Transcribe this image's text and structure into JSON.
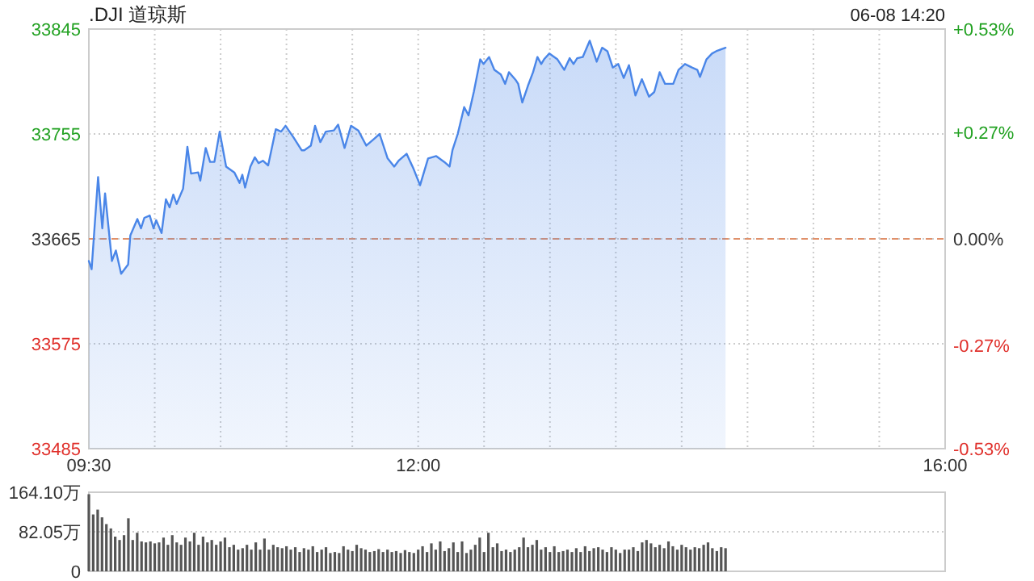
{
  "chart_data": [
    {
      "type": "area",
      "title": ".DJI 道琼斯",
      "annotations": [
        "06-08 14:20"
      ],
      "x": [
        9.5,
        9.521,
        9.57,
        9.602,
        9.623,
        9.675,
        9.705,
        9.745,
        9.798,
        9.815,
        9.868,
        9.896,
        9.921,
        9.962,
        9.991,
        10.011,
        10.052,
        10.085,
        10.113,
        10.141,
        10.166,
        10.215,
        10.248,
        10.276,
        10.33,
        10.346,
        10.387,
        10.42,
        10.453,
        10.493,
        10.542,
        10.604,
        10.644,
        10.665,
        10.686,
        10.726,
        10.76,
        10.788,
        10.821,
        10.861,
        10.919,
        10.959,
        10.993,
        11.054,
        11.115,
        11.135,
        11.185,
        11.217,
        11.257,
        11.299,
        11.36,
        11.392,
        11.441,
        11.49,
        11.545,
        11.606,
        11.667,
        11.707,
        11.768,
        11.818,
        11.851,
        11.912,
        11.965,
        12.014,
        12.075,
        12.137,
        12.198,
        12.238,
        12.26,
        12.3,
        12.349,
        12.382,
        12.422,
        12.471,
        12.496,
        12.538,
        12.578,
        12.627,
        12.66,
        12.689,
        12.742,
        12.759,
        12.79,
        12.832,
        12.872,
        12.905,
        12.934,
        12.955,
        12.995,
        13.057,
        13.109,
        13.15,
        13.179,
        13.207,
        13.249,
        13.302,
        13.355,
        13.396,
        13.436,
        13.477,
        13.519,
        13.56,
        13.6,
        13.649,
        13.698,
        13.752,
        13.792,
        13.833,
        13.874,
        13.936,
        13.976,
        14.025,
        14.078,
        14.119,
        14.139,
        14.188,
        14.23,
        14.262,
        14.333
      ],
      "series": [
        {
          "color": "#4a86e8",
          "values": [
            33646,
            33639,
            33718,
            33674,
            33704,
            33646,
            33655,
            33635,
            33643,
            33668,
            33682,
            33674,
            33683,
            33685,
            33674,
            33681,
            33670,
            33699,
            33692,
            33703,
            33695,
            33708,
            33744,
            33721,
            33722,
            33715,
            33743,
            33731,
            33731,
            33757,
            33727,
            33722,
            33713,
            33720,
            33709,
            33727,
            33735,
            33730,
            33732,
            33728,
            33759,
            33757,
            33762,
            33752,
            33741,
            33741,
            33745,
            33762,
            33748,
            33757,
            33758,
            33763,
            33743,
            33762,
            33758,
            33745,
            33751,
            33755,
            33734,
            33727,
            33732,
            33738,
            33725,
            33711,
            33734,
            33736,
            33731,
            33727,
            33741,
            33755,
            33778,
            33771,
            33791,
            33819,
            33815,
            33821,
            33810,
            33806,
            33798,
            33808,
            33801,
            33798,
            33782,
            33796,
            33808,
            33821,
            33815,
            33819,
            33824,
            33819,
            33810,
            33820,
            33815,
            33820,
            33821,
            33835,
            33817,
            33829,
            33826,
            33812,
            33815,
            33803,
            33814,
            33788,
            33802,
            33787,
            33791,
            33808,
            33798,
            33798,
            33810,
            33815,
            33812,
            33810,
            33804,
            33819,
            33824,
            33826,
            33829
          ]
        }
      ],
      "xlim": [
        9.5,
        16
      ],
      "xticks": [
        {
          "value": 9.5,
          "label": "09:30"
        },
        {
          "value": 10,
          "label": null
        },
        {
          "value": 10.5,
          "label": null
        },
        {
          "value": 11,
          "label": null
        },
        {
          "value": 11.5,
          "label": null
        },
        {
          "value": 12,
          "label": "12:00"
        },
        {
          "value": 12.5,
          "label": null
        },
        {
          "value": 13,
          "label": null
        },
        {
          "value": 13.5,
          "label": null
        },
        {
          "value": 14,
          "label": null
        },
        {
          "value": 14.5,
          "label": null
        },
        {
          "value": 15,
          "label": null
        },
        {
          "value": 15.5,
          "label": null
        },
        {
          "value": 16,
          "label": "16:00"
        }
      ],
      "ylim": [
        33485,
        33845
      ],
      "yticks": [
        33485,
        33575,
        33665,
        33755,
        33845
      ],
      "y2lim": [
        -0.53,
        0.53
      ],
      "y2ticks": [
        {
          "value": -0.53,
          "label": "-0.53%"
        },
        {
          "value": -0.27,
          "label": "-0.27%"
        },
        {
          "value": 0,
          "label": "0.00%"
        },
        {
          "value": 0.27,
          "label": "+0.27%"
        },
        {
          "value": 0.53,
          "label": "+0.53%"
        }
      ],
      "ref_lines": [
        {
          "axis": "y",
          "value": 33665,
          "color": "#e0906a",
          "line_style": "dashed"
        }
      ],
      "grid": true
    },
    {
      "type": "bar",
      "tick_labels": "y",
      "x": [
        9.5,
        9.533,
        9.567,
        9.6,
        9.633,
        9.667,
        9.7,
        9.733,
        9.767,
        9.8,
        9.833,
        9.867,
        9.9,
        9.933,
        9.967,
        10,
        10.033,
        10.067,
        10.1,
        10.133,
        10.167,
        10.2,
        10.233,
        10.267,
        10.3,
        10.333,
        10.367,
        10.4,
        10.433,
        10.467,
        10.5,
        10.533,
        10.567,
        10.6,
        10.633,
        10.667,
        10.7,
        10.733,
        10.767,
        10.8,
        10.833,
        10.867,
        10.9,
        10.933,
        10.967,
        11,
        11.033,
        11.067,
        11.1,
        11.133,
        11.167,
        11.2,
        11.233,
        11.267,
        11.3,
        11.333,
        11.367,
        11.4,
        11.433,
        11.467,
        11.5,
        11.533,
        11.567,
        11.6,
        11.633,
        11.667,
        11.7,
        11.733,
        11.767,
        11.8,
        11.833,
        11.867,
        11.9,
        11.933,
        11.967,
        12,
        12.033,
        12.067,
        12.1,
        12.133,
        12.167,
        12.2,
        12.233,
        12.267,
        12.3,
        12.333,
        12.367,
        12.4,
        12.433,
        12.467,
        12.5,
        12.533,
        12.567,
        12.6,
        12.633,
        12.667,
        12.7,
        12.733,
        12.767,
        12.8,
        12.833,
        12.867,
        12.9,
        12.933,
        12.967,
        13,
        13.033,
        13.067,
        13.1,
        13.133,
        13.167,
        13.2,
        13.233,
        13.267,
        13.3,
        13.333,
        13.367,
        13.4,
        13.433,
        13.467,
        13.5,
        13.533,
        13.567,
        13.6,
        13.633,
        13.667,
        13.7,
        13.733,
        13.767,
        13.8,
        13.833,
        13.867,
        13.9,
        13.933,
        13.967,
        14,
        14.033,
        14.067,
        14.1,
        14.133,
        14.167,
        14.2,
        14.233,
        14.267,
        14.3,
        14.333
      ],
      "series": [
        {
          "color": "#555555",
          "values": [
            160,
            118,
            128,
            112,
            98,
            89,
            72,
            65,
            75,
            110,
            65,
            80,
            62,
            60,
            62,
            58,
            60,
            70,
            55,
            75,
            60,
            55,
            70,
            62,
            80,
            55,
            72,
            60,
            65,
            55,
            62,
            70,
            50,
            55,
            45,
            48,
            55,
            45,
            60,
            45,
            68,
            45,
            55,
            50,
            48,
            52,
            45,
            50,
            40,
            48,
            45,
            52,
            40,
            45,
            50,
            38,
            40,
            38,
            52,
            45,
            42,
            55,
            48,
            45,
            40,
            42,
            46,
            40,
            45,
            40,
            42,
            38,
            44,
            40,
            38,
            45,
            52,
            40,
            58,
            45,
            62,
            42,
            48,
            60,
            40,
            62,
            38,
            45,
            55,
            70,
            40,
            80,
            50,
            58,
            42,
            45,
            40,
            45,
            50,
            70,
            50,
            55,
            65,
            45,
            50,
            40,
            52,
            40,
            42,
            45,
            40,
            48,
            40,
            52,
            42,
            48,
            50,
            45,
            40,
            50,
            45,
            38,
            45,
            45,
            50,
            42,
            60,
            65,
            58,
            50,
            55,
            48,
            62,
            52,
            45,
            55,
            50,
            45,
            50,
            48,
            55,
            60,
            48,
            42,
            50,
            48
          ]
        }
      ],
      "xlim": [
        9.5,
        16
      ],
      "ylim": [
        0,
        164.1
      ],
      "yticks": [
        0,
        {
          "value": 82.05,
          "label": "82.05万"
        },
        {
          "value": 164.1,
          "label": "164.10万"
        }
      ],
      "grid": "y"
    }
  ]
}
